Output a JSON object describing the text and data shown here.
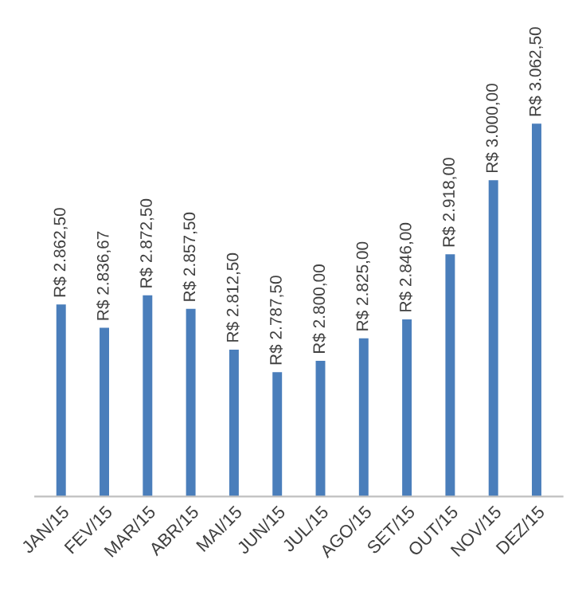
{
  "chart_data": {
    "type": "bar",
    "categories": [
      "JAN/15",
      "FEV/15",
      "MAR/15",
      "ABR/15",
      "MAI/15",
      "JUN/15",
      "JUL/15",
      "AGO/15",
      "SET/15",
      "OUT/15",
      "NOV/15",
      "DEZ/15"
    ],
    "values": [
      2862.5,
      2836.67,
      2872.5,
      2857.5,
      2812.5,
      2787.5,
      2800.0,
      2825.0,
      2846.0,
      2918.0,
      3000.0,
      3062.5
    ],
    "value_labels": [
      "R$ 2.862,50",
      "R$ 2.836,67",
      "R$ 2.872,50",
      "R$ 2.857,50",
      "R$ 2.812,50",
      "R$ 2.787,50",
      "R$ 2.800,00",
      "R$ 2.825,00",
      "R$ 2.846,00",
      "R$ 2.918,00",
      "R$ 3.000,00",
      "R$ 3.062,50"
    ],
    "color": "#4a7ebb",
    "tick_labels": "x",
    "grid": false,
    "legend": false
  }
}
